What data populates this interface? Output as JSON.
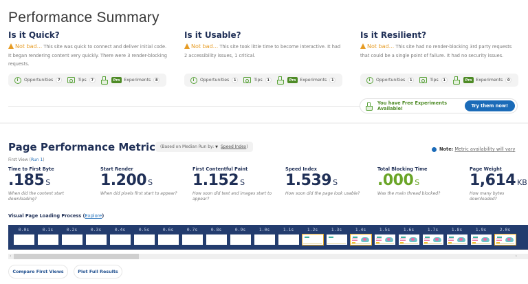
{
  "summary": {
    "title": "Performance Summary",
    "columns": [
      {
        "heading": "Is it Quick?",
        "status": "Not bad...",
        "text": " This site was quick to connect and deliver initial code. It began rendering content very quickly. There were 3 render-blocking requests.",
        "opportunities_label": "Opportunities",
        "opportunities": "7",
        "tips_label": "Tips",
        "tips": "7",
        "pro_label": "Pro",
        "experiments_label": "Experiments",
        "experiments": "8"
      },
      {
        "heading": "Is it Usable?",
        "status": "Not bad...",
        "text": " This site took little time to become interactive. It had 2 accessibility issues, 1 critical.",
        "opportunities_label": "Opportunities",
        "opportunities": "1",
        "tips_label": "Tips",
        "tips": "1",
        "pro_label": "Pro",
        "experiments_label": "Experiments",
        "experiments": "1"
      },
      {
        "heading": "Is it Resilient?",
        "status": "Not bad...",
        "text": " This site had no render-blocking 3rd party requests that could be a single point of failure. It had no security issues.",
        "opportunities_label": "Opportunities",
        "opportunities": "1",
        "tips_label": "Tips",
        "tips": "1",
        "pro_label": "Pro",
        "experiments_label": "Experiments",
        "experiments": "0"
      }
    ],
    "free_experiments": {
      "message": "You have Free Experiments Available!",
      "button": "Try them now!"
    }
  },
  "metrics": {
    "title": "Page Performance Metrics",
    "median_prefix": "(Based on Median Run by:",
    "median_link": "Speed Index",
    "median_suffix": ")",
    "note_label": "Note:",
    "note_text": "Metric availability will vary",
    "first_view": "First View (",
    "run_link": "Run 1",
    "first_view_close": ")",
    "items": [
      {
        "label": "Time to First Byte",
        "value": ".185",
        "unit": "S",
        "question": "When did the content start downloading?"
      },
      {
        "label": "Start Render",
        "value": "1.200",
        "unit": "S",
        "question": "When did pixels first start to appear?"
      },
      {
        "label": "First Contentful Paint",
        "value": "1.152",
        "unit": "S",
        "question": "How soon did text and images start to appear?"
      },
      {
        "label": "Speed Index",
        "value": "1.539",
        "unit": "S",
        "question": "How soon did the page look usable?"
      },
      {
        "label": "Total Blocking Time",
        "value": ".000",
        "unit": "S",
        "question": "Was the main thread blocked?"
      },
      {
        "label": "Page Weight",
        "value": "1,614",
        "unit": "KB",
        "question": "How many bytes downloaded?"
      }
    ],
    "colors": {
      "good": "#6aa527",
      "primary": "#1f2f56",
      "warning": "#e69b23",
      "link": "#1b6bb8"
    }
  },
  "filmstrip": {
    "label": "Visual Page Loading Process",
    "explore_link": "Explore",
    "frames": [
      {
        "time": "0.0s",
        "state": "blank"
      },
      {
        "time": "0.1s",
        "state": "blank"
      },
      {
        "time": "0.2s",
        "state": "blank"
      },
      {
        "time": "0.3s",
        "state": "blank"
      },
      {
        "time": "0.4s",
        "state": "blank"
      },
      {
        "time": "0.5s",
        "state": "blank"
      },
      {
        "time": "0.6s",
        "state": "blank"
      },
      {
        "time": "0.7s",
        "state": "blank"
      },
      {
        "time": "0.8s",
        "state": "blank"
      },
      {
        "time": "0.9s",
        "state": "blank"
      },
      {
        "time": "1.0s",
        "state": "blank"
      },
      {
        "time": "1.1s",
        "state": "blank"
      },
      {
        "time": "1.2s",
        "state": "partial-changed"
      },
      {
        "time": "1.3s",
        "state": "partial"
      },
      {
        "time": "1.4s",
        "state": "full-changed"
      },
      {
        "time": "1.5s",
        "state": "full"
      },
      {
        "time": "1.6s",
        "state": "full"
      },
      {
        "time": "1.7s",
        "state": "full"
      },
      {
        "time": "1.8s",
        "state": "full"
      },
      {
        "time": "1.9s",
        "state": "full"
      },
      {
        "time": "2.0s",
        "state": "full-changed"
      }
    ]
  },
  "actions": {
    "compare": "Compare First Views",
    "plot": "Plot Full Results"
  },
  "scrollbar": {
    "left_arrow": "‹",
    "right_arrow": "›"
  }
}
